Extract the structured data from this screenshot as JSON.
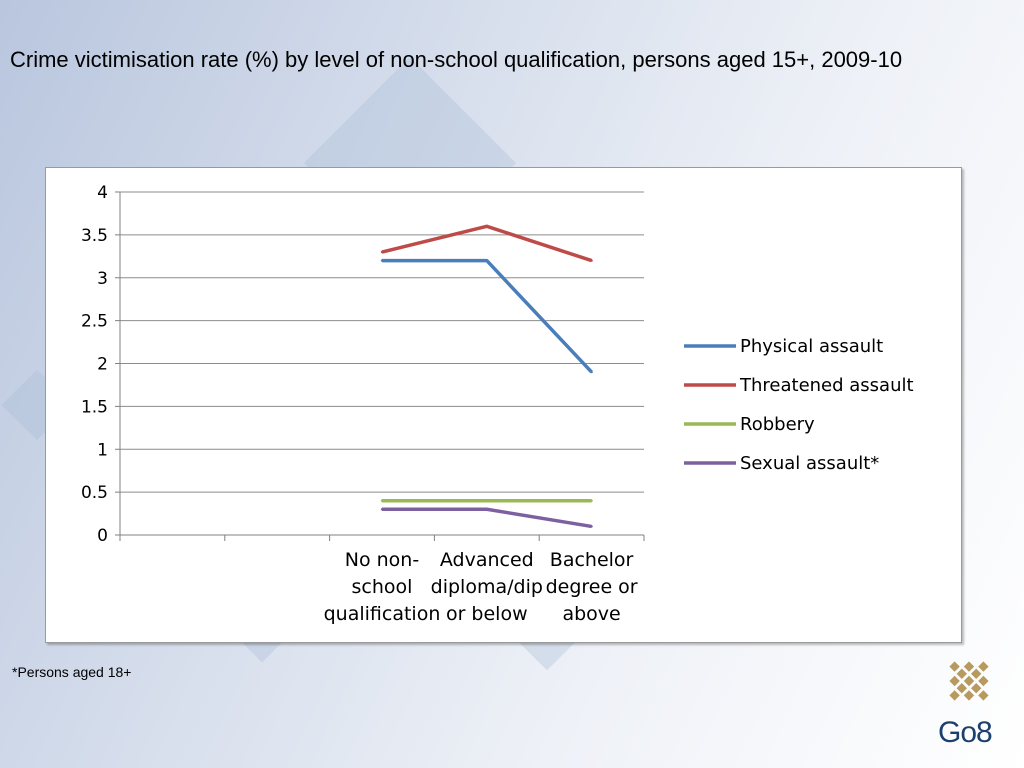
{
  "title": "Crime victimisation rate (%) by level of non-school qualification, persons aged 15+, 2009-10",
  "footnote": "*Persons aged 18+",
  "logo_text": "Go8",
  "colors": {
    "physical": "#4a7ebb",
    "threatened": "#be4b48",
    "robbery": "#98b954",
    "sexual": "#7d60a0",
    "logo_gold": "#b89a5e",
    "logo_blue": "#1d3f6e"
  },
  "chart_data": {
    "type": "line",
    "title": "",
    "xlabel": "",
    "ylabel": "",
    "ylim": [
      0,
      4
    ],
    "yticks": [
      "0",
      "0.5",
      "1",
      "1.5",
      "2",
      "2.5",
      "3",
      "3.5",
      "4"
    ],
    "grid": "horizontal",
    "legend_position": "right",
    "categories": [
      [
        "No non-",
        "school",
        "qualification"
      ],
      [
        "Advanced",
        "diploma/dip",
        "or below"
      ],
      [
        "Bachelor",
        "degree or",
        "above"
      ]
    ],
    "series": [
      {
        "name": "Physical assault",
        "values": [
          3.2,
          3.2,
          1.9
        ],
        "color": "#4a7ebb"
      },
      {
        "name": "Threatened assault",
        "values": [
          3.3,
          3.6,
          3.2
        ],
        "color": "#be4b48"
      },
      {
        "name": "Robbery",
        "values": [
          0.4,
          0.4,
          0.4
        ],
        "color": "#98b954"
      },
      {
        "name": "Sexual assault*",
        "values": [
          0.3,
          0.3,
          0.1
        ],
        "color": "#7d60a0"
      }
    ]
  }
}
